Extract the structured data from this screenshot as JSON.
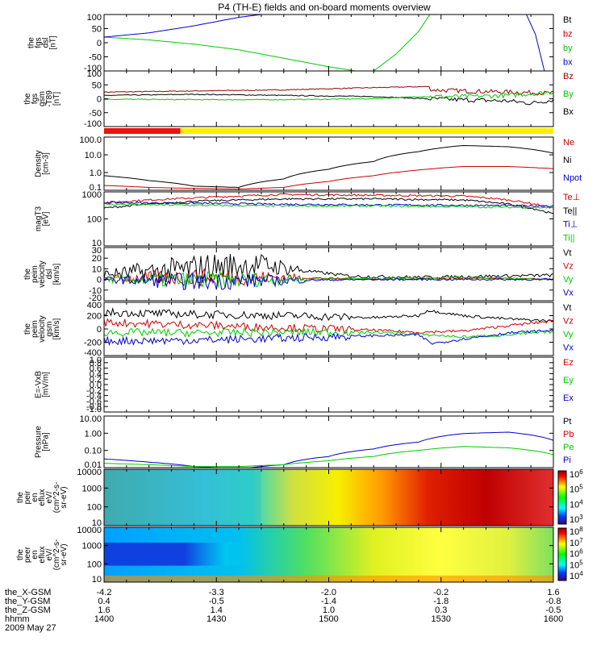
{
  "title": "P4 (TH-E) fields and on-board moments overview",
  "time_ticks": [
    "1400",
    "1430",
    "1500",
    "1530",
    "1600"
  ],
  "footer": {
    "rows": [
      {
        "label": "the_X-GSM",
        "values": [
          "-4.2",
          "-3.3",
          "-2.0",
          "-0.2",
          "1.6"
        ]
      },
      {
        "label": "the_Y-GSM",
        "values": [
          "0.4",
          "-0.5",
          "-1.4",
          "-1.8",
          "-0.8"
        ]
      },
      {
        "label": "the_Z-GSM",
        "values": [
          "1.6",
          "1.4",
          "1.0",
          "0.3",
          "-0.5"
        ]
      },
      {
        "label": "hhmm",
        "values": [
          "1400",
          "1430",
          "1500",
          "1530",
          "1600"
        ]
      }
    ],
    "date": "2009 May 27"
  },
  "colors": {
    "black": "#000000",
    "red": "#cc0000",
    "green": "#00cc00",
    "blue": "#0000cc",
    "magenta": "#990000"
  },
  "status_bar": {
    "red_fraction": 0.17,
    "red": "#ee1111",
    "yellow": "#ffee00"
  },
  "colorbar1": {
    "labels": [
      "10^6",
      "10^5",
      "10^4",
      "10^3"
    ]
  },
  "colorbar2": {
    "labels": [
      "10^8",
      "10^7",
      "10^6",
      "10^5",
      "10^4"
    ]
  },
  "chart_data": [
    {
      "type": "line",
      "id": "fgs_dsl",
      "ylabel": [
        "the",
        "fgs",
        "dsl",
        "[nT]"
      ],
      "ylim": [
        -100,
        100
      ],
      "yticks": [
        "100",
        "50",
        "0",
        "-50",
        "-100"
      ],
      "legend": [
        {
          "name": "Bt",
          "color": "#000000"
        },
        {
          "name": "bz",
          "color": "#cc0000"
        },
        {
          "name": "by",
          "color": "#00cc00"
        },
        {
          "name": "bx",
          "color": "#0000cc"
        }
      ],
      "series": [
        {
          "name": "by",
          "color": "#00cc00",
          "x": [
            0,
            0.1,
            0.2,
            0.3,
            0.4,
            0.5,
            0.56
          ],
          "y": [
            20,
            10,
            -5,
            -25,
            -55,
            -85,
            -100
          ]
        },
        {
          "name": "by",
          "color": "#00cc00",
          "x": [
            0.6,
            0.65,
            0.7,
            0.725
          ],
          "y": [
            -100,
            -40,
            40,
            100
          ]
        },
        {
          "name": "bx",
          "color": "#0000cc",
          "x": [
            0,
            0.1,
            0.2,
            0.3,
            0.35
          ],
          "y": [
            20,
            35,
            60,
            90,
            100
          ]
        },
        {
          "name": "bx",
          "color": "#0000cc",
          "x": [
            0.94,
            0.96,
            0.98
          ],
          "y": [
            100,
            30,
            -100
          ]
        },
        {
          "name": "spike",
          "color": "#00cc00",
          "x": [
            0.725,
            0.725
          ],
          "y": [
            100,
            -100
          ]
        }
      ]
    },
    {
      "type": "line",
      "id": "fgs_gsm",
      "ylabel": [
        "the",
        "fgs",
        "gsm",
        "-T89",
        "[nT]"
      ],
      "ylim": [
        -125,
        125
      ],
      "yticks": [
        "100",
        "50",
        "0",
        "-50",
        "-100"
      ],
      "legend": [
        {
          "name": "Bz",
          "color": "#990000"
        },
        {
          "name": "By",
          "color": "#00cc00"
        },
        {
          "name": "Bx",
          "color": "#000000"
        }
      ],
      "series": [
        {
          "name": "Bz",
          "color": "#990000",
          "x": [
            0,
            0.2,
            0.4,
            0.6,
            0.72,
            0.73,
            0.8,
            0.9,
            1
          ],
          "y": [
            30,
            35,
            40,
            50,
            55,
            40,
            35,
            30,
            25
          ]
        },
        {
          "name": "Bx",
          "color": "#000000",
          "x": [
            0,
            0.2,
            0.4,
            0.6,
            0.72,
            0.8,
            0.9,
            0.95,
            1
          ],
          "y": [
            15,
            20,
            15,
            10,
            0,
            -5,
            -10,
            -20,
            -5
          ]
        },
        {
          "name": "By",
          "color": "#00cc00",
          "x": [
            0,
            0.2,
            0.4,
            0.6,
            0.7,
            0.8,
            0.9,
            1
          ],
          "y": [
            -2,
            -4,
            -4,
            0,
            10,
            10,
            15,
            30
          ]
        }
      ]
    },
    {
      "type": "line",
      "id": "density",
      "ylabel": [
        "Density",
        "[cm-3]"
      ],
      "ylog": true,
      "ylim": [
        0.1,
        200
      ],
      "yticks": [
        "100.0",
        "10.0",
        "1.0",
        "0.1"
      ],
      "legend": [
        {
          "name": "Ne",
          "color": "#cc0000"
        },
        {
          "name": "Ni",
          "color": "#000000"
        },
        {
          "name": "Npot",
          "color": "#0000cc"
        }
      ],
      "series": [
        {
          "name": "Ni",
          "color": "#000000",
          "x": [
            0,
            0.1,
            0.2,
            0.3,
            0.4,
            0.5,
            0.6,
            0.7,
            0.8,
            0.9,
            1
          ],
          "y": [
            0.8,
            0.4,
            0.18,
            0.15,
            0.5,
            2,
            6,
            25,
            60,
            50,
            20
          ]
        },
        {
          "name": "Ne",
          "color": "#cc0000",
          "x": [
            0,
            0.1,
            0.2,
            0.3,
            0.4,
            0.5,
            0.6,
            0.7,
            0.8,
            0.9,
            1
          ],
          "y": [
            0.2,
            0.15,
            0.13,
            0.12,
            0.15,
            0.35,
            0.8,
            1.8,
            3,
            3,
            2.2
          ]
        }
      ]
    },
    {
      "type": "line",
      "id": "temp",
      "ylabel": [
        "magT3",
        "[eV]"
      ],
      "ylog": true,
      "ylim": [
        10,
        1000
      ],
      "yticks": [
        "1000",
        "100",
        "10"
      ],
      "legend": [
        {
          "name": "Te⊥",
          "color": "#cc0000"
        },
        {
          "name": "Te||",
          "color": "#000000"
        },
        {
          "name": "Ti⊥",
          "color": "#0000cc"
        },
        {
          "name": "Ti||",
          "color": "#00cc00"
        }
      ],
      "series": [
        {
          "name": "Te_perp",
          "color": "#cc0000",
          "x": [
            0,
            0.2,
            0.4,
            0.6,
            0.8,
            0.9,
            1
          ],
          "y": [
            400,
            600,
            800,
            750,
            700,
            500,
            250
          ]
        },
        {
          "name": "Te_par",
          "color": "#000000",
          "x": [
            0,
            0.2,
            0.4,
            0.6,
            0.8,
            0.9,
            1
          ],
          "y": [
            250,
            450,
            550,
            550,
            500,
            350,
            150
          ]
        },
        {
          "name": "Ti_perp",
          "color": "#0000cc",
          "x": [
            0,
            0.2,
            0.4,
            0.6,
            0.8,
            1
          ],
          "y": [
            400,
            380,
            350,
            330,
            320,
            300
          ]
        },
        {
          "name": "Ti_par",
          "color": "#00cc00",
          "x": [
            0,
            0.2,
            0.4,
            0.6,
            0.8,
            1
          ],
          "y": [
            350,
            320,
            300,
            300,
            280,
            260
          ]
        }
      ]
    },
    {
      "type": "line",
      "id": "vel_dsl",
      "ylabel": [
        "the",
        "peim",
        "velocity",
        "dsl",
        "[km/s]"
      ],
      "ylim": [
        -20,
        30
      ],
      "yticks": [
        "30",
        "20",
        "10",
        "0",
        "-10",
        "-20"
      ],
      "legend": [
        {
          "name": "Vt",
          "color": "#000000"
        },
        {
          "name": "Vz",
          "color": "#cc0000"
        },
        {
          "name": "Vy",
          "color": "#00cc00"
        },
        {
          "name": "Vx",
          "color": "#0000cc"
        }
      ],
      "series": [
        {
          "name": "Vt",
          "color": "#000000",
          "x": [
            0,
            0.15,
            0.25,
            0.35,
            0.45,
            0.55,
            0.7,
            0.85,
            1
          ],
          "y": [
            5,
            8,
            12,
            14,
            8,
            3,
            2,
            3,
            4
          ]
        },
        {
          "name": "Vz",
          "color": "#cc0000",
          "x": [
            0,
            0.2,
            0.4,
            0.6,
            0.8,
            1
          ],
          "y": [
            1,
            2,
            2,
            0,
            1,
            0
          ]
        },
        {
          "name": "Vy",
          "color": "#00cc00",
          "x": [
            0,
            0.2,
            0.4,
            0.6,
            0.8,
            1
          ],
          "y": [
            0,
            -1,
            0,
            1,
            2,
            0
          ]
        },
        {
          "name": "Vx",
          "color": "#0000cc",
          "x": [
            0,
            0.2,
            0.4,
            0.6,
            0.8,
            1
          ],
          "y": [
            0,
            -2,
            -1,
            0,
            0,
            0
          ]
        }
      ]
    },
    {
      "type": "line",
      "id": "vel_gsm",
      "ylabel": [
        "the",
        "peim",
        "velocity",
        "gsm",
        "[km/s]"
      ],
      "ylim": [
        -400,
        400
      ],
      "yticks": [
        "400",
        "200",
        "0",
        "-200",
        "-400"
      ],
      "legend": [
        {
          "name": "Vt",
          "color": "#000000"
        },
        {
          "name": "Vz",
          "color": "#cc0000"
        },
        {
          "name": "Vy",
          "color": "#00cc00"
        },
        {
          "name": "Vx",
          "color": "#0000cc"
        }
      ],
      "series": [
        {
          "name": "Vt",
          "color": "#000000",
          "x": [
            0,
            0.2,
            0.4,
            0.6,
            0.7,
            0.72,
            0.8,
            0.9,
            1
          ],
          "y": [
            250,
            220,
            200,
            170,
            200,
            280,
            200,
            150,
            120
          ]
        },
        {
          "name": "Vz",
          "color": "#cc0000",
          "x": [
            0,
            0.2,
            0.4,
            0.6,
            0.7,
            0.8,
            0.9,
            1
          ],
          "y": [
            100,
            60,
            20,
            -20,
            -50,
            -30,
            50,
            120
          ]
        },
        {
          "name": "Vy",
          "color": "#00cc00",
          "x": [
            0,
            0.2,
            0.4,
            0.6,
            0.7,
            0.8,
            0.9,
            1
          ],
          "y": [
            -50,
            -60,
            -50,
            -50,
            -80,
            -120,
            -90,
            -40
          ]
        },
        {
          "name": "Vx",
          "color": "#0000cc",
          "x": [
            0,
            0.2,
            0.4,
            0.6,
            0.7,
            0.73,
            0.8,
            0.9,
            1
          ],
          "y": [
            -180,
            -170,
            -140,
            -100,
            -90,
            -220,
            -150,
            -60,
            -20
          ]
        }
      ]
    },
    {
      "type": "line",
      "id": "efield",
      "ylabel": [
        "E=-VxB",
        "[mV/m]"
      ],
      "ylim": [
        -1,
        1
      ],
      "yticks": [
        "1.0",
        "0.8",
        "0.6",
        "0.4",
        "0.2",
        "0.0",
        "-0.2",
        "-0.4",
        "-0.6",
        "-0.8",
        "-1.0"
      ],
      "legend": [
        {
          "name": "Ez",
          "color": "#cc0000"
        },
        {
          "name": "Ey",
          "color": "#00cc00"
        },
        {
          "name": "Ex",
          "color": "#0000cc"
        }
      ],
      "series": []
    },
    {
      "type": "line",
      "id": "pressure",
      "ylabel": [
        "Pressure",
        "[nPa]"
      ],
      "ylog": true,
      "ylim": [
        0.005,
        20
      ],
      "yticks": [
        "10.00",
        "1.00",
        "0.10",
        "0.01"
      ],
      "legend": [
        {
          "name": "Pt",
          "color": "#000000"
        },
        {
          "name": "Pb",
          "color": "#cc0000"
        },
        {
          "name": "Pe",
          "color": "#00cc00"
        },
        {
          "name": "Pi",
          "color": "#0000cc"
        }
      ],
      "series": [
        {
          "name": "Pi",
          "color": "#0000cc",
          "x": [
            0,
            0.1,
            0.2,
            0.3,
            0.4,
            0.5,
            0.6,
            0.7,
            0.8,
            0.9,
            1
          ],
          "y": [
            0.02,
            0.012,
            0.006,
            0.004,
            0.008,
            0.03,
            0.1,
            0.3,
            1.2,
            1.5,
            0.4
          ]
        },
        {
          "name": "Pe",
          "color": "#00cc00",
          "x": [
            0,
            0.1,
            0.2,
            0.3,
            0.4,
            0.5,
            0.6,
            0.7,
            0.8,
            0.9,
            1
          ],
          "y": [
            0.01,
            0.008,
            0.006,
            0.006,
            0.008,
            0.015,
            0.03,
            0.08,
            0.15,
            0.12,
            0.04
          ]
        }
      ]
    },
    {
      "type": "heatmap",
      "id": "ion_eflux",
      "ylabel": [
        "the",
        "peir",
        "en",
        "eflux",
        "eV/",
        "(cm^2-s-",
        "sr-eV)"
      ],
      "ylog": true,
      "yticks": [
        "10000",
        "1000",
        "100",
        "10"
      ]
    },
    {
      "type": "heatmap",
      "id": "elec_eflux",
      "ylabel": [
        "the",
        "peer",
        "en",
        "eflux",
        "eV/",
        "(cm^2-s-",
        "sr-eV)"
      ],
      "ylog": true,
      "yticks": [
        "10000",
        "1000",
        "100",
        "10"
      ]
    }
  ]
}
